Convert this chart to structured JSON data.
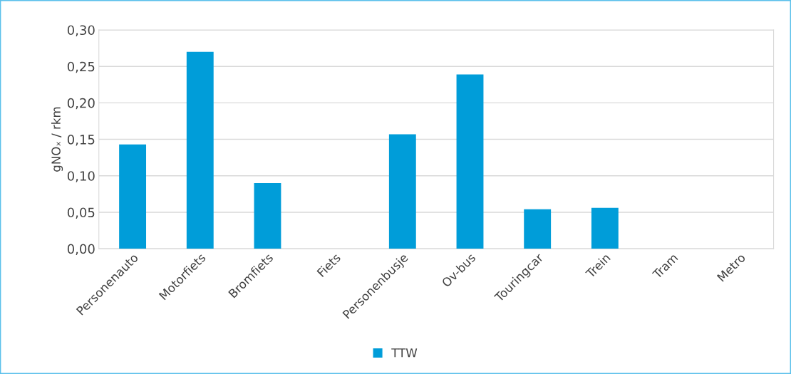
{
  "chart_data": {
    "type": "bar",
    "ylabel": "gNOₓ / rkm",
    "categories": [
      "Personenauto",
      "Motorfiets",
      "Bromfiets",
      "Fiets",
      "Personenbusje",
      "Ov-bus",
      "Touringcar",
      "Trein",
      "Tram",
      "Metro"
    ],
    "series": [
      {
        "name": "TTW",
        "color": "#009dd9",
        "values": [
          0.143,
          0.27,
          0.09,
          0,
          0.157,
          0.239,
          0.054,
          0.056,
          0,
          0
        ]
      }
    ],
    "ylim": [
      0,
      0.3
    ],
    "yticks": [
      {
        "value": 0,
        "label": "0,00"
      },
      {
        "value": 0.05,
        "label": "0,05"
      },
      {
        "value": 0.1,
        "label": "0,10"
      },
      {
        "value": 0.15,
        "label": "0,15"
      },
      {
        "value": 0.2,
        "label": "0,20"
      },
      {
        "value": 0.25,
        "label": "0,25"
      },
      {
        "value": 0.3,
        "label": "0,30"
      }
    ],
    "grid": "y",
    "legend": "bottom"
  }
}
